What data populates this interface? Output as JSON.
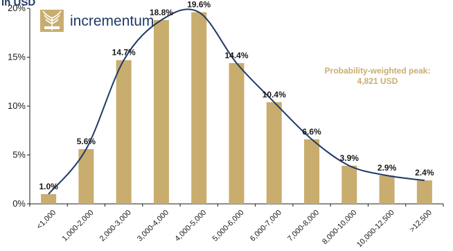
{
  "chart_data": {
    "type": "bar",
    "unit_label": "in USD",
    "categories": [
      "<1,000",
      "1,000-2,000",
      "2,000-3,000",
      "3,000-4,000",
      "4,000-5,000",
      "5,000-6,000",
      "6,000-7,000",
      "7,000-8,000",
      "8,000-10,000",
      "10,000-12,500",
      ">12,500"
    ],
    "values": [
      1.0,
      5.6,
      14.7,
      18.8,
      19.6,
      14.4,
      10.4,
      6.6,
      3.9,
      2.9,
      2.4
    ],
    "value_labels": [
      "1.0%",
      "5.6%",
      "14.7%",
      "18.8%",
      "19.6%",
      "14.4%",
      "10.4%",
      "6.6%",
      "3.9%",
      "2.9%",
      "2.4%"
    ],
    "ylim": [
      0,
      20
    ],
    "yticks": [
      0,
      5,
      10,
      15,
      20
    ],
    "ytick_labels": [
      "0%",
      "5%",
      "10%",
      "15%",
      "20%"
    ],
    "grid": false,
    "smoothed_curve": true,
    "annotation": [
      "Probability-weighted peak:",
      "4,821 USD"
    ],
    "logo_text": "incrementum",
    "colors": {
      "bar": "#c8ad6e",
      "curve": "#1f3a66",
      "annotation": "#c8ad6e",
      "axis": "#1a1a1a"
    }
  }
}
